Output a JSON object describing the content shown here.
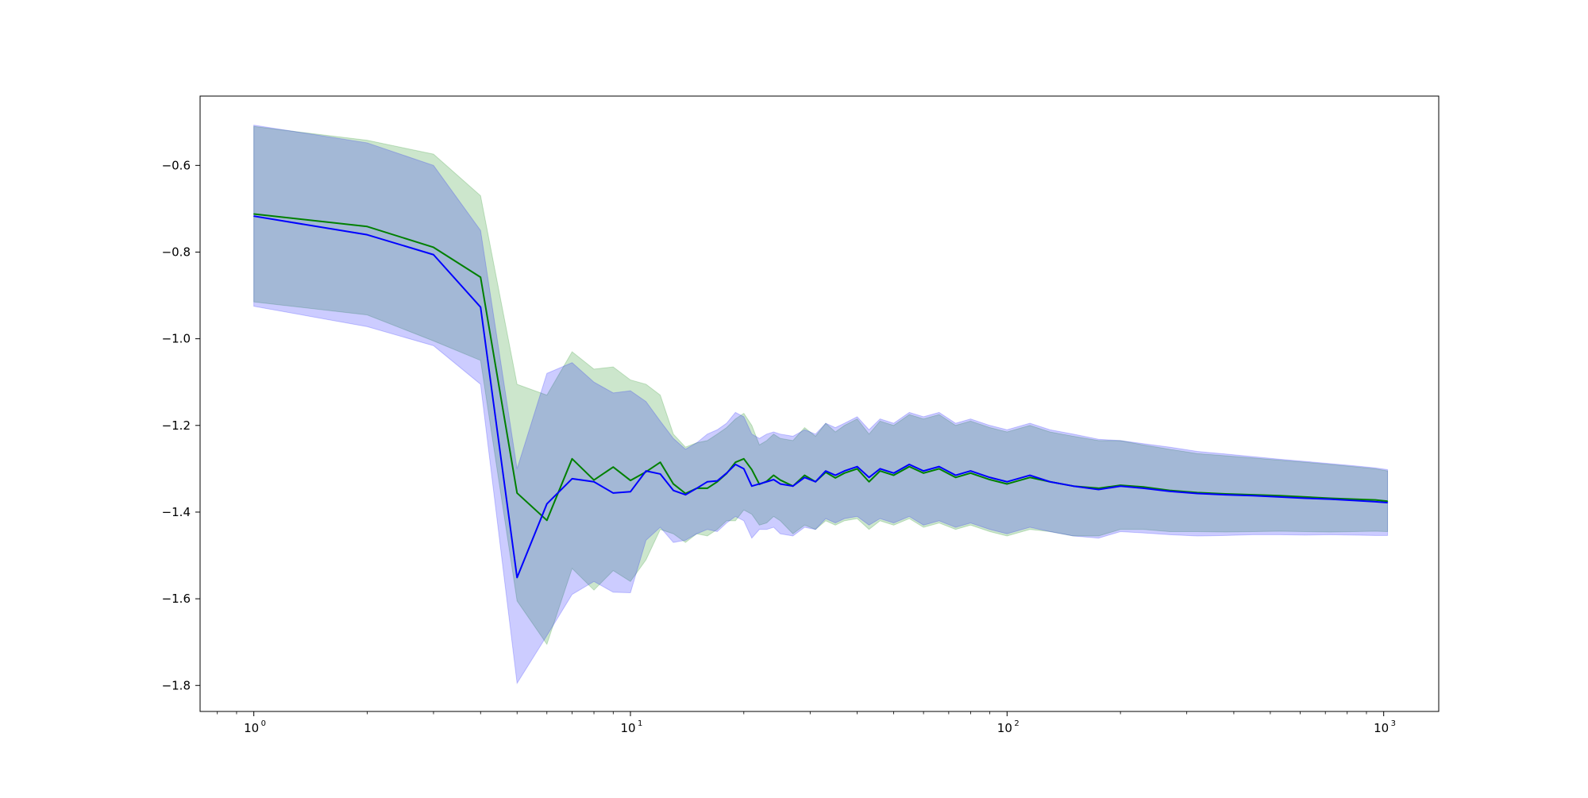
{
  "chart_data": {
    "type": "line",
    "title": "",
    "xlabel": "",
    "ylabel": "",
    "xscale": "log",
    "xlim": [
      0.72,
      1400
    ],
    "ylim": [
      -1.86,
      -0.44
    ],
    "grid": false,
    "legend": "none",
    "x_ticks": [
      {
        "base": "10",
        "exp": "0",
        "value": 1
      },
      {
        "base": "10",
        "exp": "1",
        "value": 10
      },
      {
        "base": "10",
        "exp": "2",
        "value": 100
      },
      {
        "base": "10",
        "exp": "3",
        "value": 1000
      }
    ],
    "y_ticks": [
      {
        "label": "−0.6",
        "value": -0.6
      },
      {
        "label": "−0.8",
        "value": -0.8
      },
      {
        "label": "−1.0",
        "value": -1.0
      },
      {
        "label": "−1.2",
        "value": -1.2
      },
      {
        "label": "−1.4",
        "value": -1.4
      },
      {
        "label": "−1.6",
        "value": -1.6
      },
      {
        "label": "−1.8",
        "value": -1.8
      }
    ],
    "series": [
      {
        "color": "#008000",
        "band_color": "#008000",
        "band_opacity": 0.2,
        "x": [
          1,
          2,
          3,
          4,
          5,
          6,
          7,
          8,
          9,
          10,
          11,
          12,
          13,
          14,
          15,
          16,
          17,
          18,
          19,
          20,
          21,
          22,
          23,
          24,
          25,
          27,
          29,
          31,
          33,
          35,
          37,
          40,
          43,
          46,
          50,
          55,
          60,
          66,
          73,
          80,
          90,
          100,
          115,
          130,
          150,
          175,
          200,
          230,
          270,
          320,
          380,
          450,
          530,
          620,
          720,
          830,
          950,
          1024
        ],
        "y": [
          -0.712,
          -0.741,
          -0.789,
          -0.858,
          -1.356,
          -1.419,
          -1.277,
          -1.326,
          -1.296,
          -1.327,
          -1.307,
          -1.285,
          -1.335,
          -1.357,
          -1.345,
          -1.345,
          -1.33,
          -1.311,
          -1.285,
          -1.277,
          -1.302,
          -1.336,
          -1.329,
          -1.315,
          -1.326,
          -1.34,
          -1.315,
          -1.33,
          -1.308,
          -1.321,
          -1.31,
          -1.3,
          -1.33,
          -1.305,
          -1.315,
          -1.295,
          -1.31,
          -1.3,
          -1.32,
          -1.31,
          -1.325,
          -1.335,
          -1.32,
          -1.33,
          -1.34,
          -1.345,
          -1.338,
          -1.342,
          -1.35,
          -1.355,
          -1.358,
          -1.36,
          -1.362,
          -1.365,
          -1.368,
          -1.37,
          -1.372,
          -1.375
        ],
        "upper": [
          -0.51,
          -0.542,
          -0.574,
          -0.67,
          -1.105,
          -1.13,
          -1.03,
          -1.07,
          -1.065,
          -1.095,
          -1.105,
          -1.13,
          -1.22,
          -1.25,
          -1.24,
          -1.235,
          -1.22,
          -1.205,
          -1.185,
          -1.172,
          -1.2,
          -1.245,
          -1.235,
          -1.22,
          -1.23,
          -1.235,
          -1.205,
          -1.225,
          -1.195,
          -1.215,
          -1.2,
          -1.185,
          -1.22,
          -1.19,
          -1.2,
          -1.175,
          -1.185,
          -1.175,
          -1.2,
          -1.19,
          -1.205,
          -1.215,
          -1.2,
          -1.215,
          -1.225,
          -1.235,
          -1.235,
          -1.245,
          -1.255,
          -1.265,
          -1.27,
          -1.275,
          -1.28,
          -1.285,
          -1.29,
          -1.295,
          -1.3,
          -1.305
        ],
        "lower": [
          -0.915,
          -0.945,
          -1.005,
          -1.05,
          -1.605,
          -1.705,
          -1.53,
          -1.58,
          -1.535,
          -1.56,
          -1.51,
          -1.44,
          -1.45,
          -1.47,
          -1.45,
          -1.455,
          -1.44,
          -1.42,
          -1.42,
          -1.395,
          -1.405,
          -1.43,
          -1.425,
          -1.41,
          -1.42,
          -1.45,
          -1.43,
          -1.44,
          -1.42,
          -1.43,
          -1.42,
          -1.415,
          -1.44,
          -1.42,
          -1.43,
          -1.415,
          -1.435,
          -1.425,
          -1.44,
          -1.43,
          -1.445,
          -1.455,
          -1.44,
          -1.445,
          -1.455,
          -1.455,
          -1.44,
          -1.44,
          -1.445,
          -1.445,
          -1.446,
          -1.445,
          -1.444,
          -1.445,
          -1.446,
          -1.445,
          -1.444,
          -1.445
        ]
      },
      {
        "color": "#0000ff",
        "band_color": "#0000ff",
        "band_opacity": 0.2,
        "x": [
          1,
          2,
          3,
          4,
          5,
          6,
          7,
          8,
          9,
          10,
          11,
          12,
          13,
          14,
          15,
          16,
          17,
          18,
          19,
          20,
          21,
          22,
          23,
          24,
          25,
          27,
          29,
          31,
          33,
          35,
          37,
          40,
          43,
          46,
          50,
          55,
          60,
          66,
          73,
          80,
          90,
          100,
          115,
          130,
          150,
          175,
          200,
          230,
          270,
          320,
          380,
          450,
          530,
          620,
          720,
          830,
          950,
          1024
        ],
        "y": [
          -0.717,
          -0.76,
          -0.806,
          -0.927,
          -1.551,
          -1.381,
          -1.323,
          -1.33,
          -1.356,
          -1.353,
          -1.305,
          -1.312,
          -1.35,
          -1.36,
          -1.345,
          -1.33,
          -1.328,
          -1.31,
          -1.29,
          -1.3,
          -1.34,
          -1.335,
          -1.33,
          -1.325,
          -1.335,
          -1.34,
          -1.32,
          -1.33,
          -1.305,
          -1.315,
          -1.305,
          -1.295,
          -1.32,
          -1.3,
          -1.31,
          -1.29,
          -1.305,
          -1.295,
          -1.315,
          -1.305,
          -1.32,
          -1.33,
          -1.315,
          -1.33,
          -1.34,
          -1.348,
          -1.34,
          -1.345,
          -1.352,
          -1.357,
          -1.36,
          -1.362,
          -1.365,
          -1.368,
          -1.37,
          -1.373,
          -1.376,
          -1.378
        ],
        "upper": [
          -0.507,
          -0.548,
          -0.6,
          -0.75,
          -1.3,
          -1.08,
          -1.055,
          -1.1,
          -1.125,
          -1.12,
          -1.145,
          -1.19,
          -1.23,
          -1.255,
          -1.24,
          -1.22,
          -1.21,
          -1.195,
          -1.17,
          -1.18,
          -1.22,
          -1.23,
          -1.22,
          -1.215,
          -1.22,
          -1.225,
          -1.21,
          -1.22,
          -1.195,
          -1.205,
          -1.195,
          -1.18,
          -1.21,
          -1.185,
          -1.195,
          -1.17,
          -1.18,
          -1.17,
          -1.195,
          -1.185,
          -1.2,
          -1.21,
          -1.195,
          -1.21,
          -1.22,
          -1.232,
          -1.235,
          -1.242,
          -1.25,
          -1.26,
          -1.266,
          -1.272,
          -1.278,
          -1.283,
          -1.288,
          -1.293,
          -1.298,
          -1.302
        ],
        "lower": [
          -0.925,
          -0.972,
          -1.016,
          -1.105,
          -1.795,
          -1.685,
          -1.59,
          -1.56,
          -1.585,
          -1.586,
          -1.465,
          -1.435,
          -1.47,
          -1.465,
          -1.45,
          -1.44,
          -1.445,
          -1.425,
          -1.41,
          -1.42,
          -1.46,
          -1.44,
          -1.44,
          -1.435,
          -1.45,
          -1.455,
          -1.435,
          -1.44,
          -1.415,
          -1.425,
          -1.415,
          -1.41,
          -1.43,
          -1.415,
          -1.425,
          -1.41,
          -1.43,
          -1.42,
          -1.435,
          -1.425,
          -1.44,
          -1.45,
          -1.435,
          -1.445,
          -1.455,
          -1.46,
          -1.445,
          -1.448,
          -1.452,
          -1.455,
          -1.454,
          -1.452,
          -1.452,
          -1.453,
          -1.452,
          -1.453,
          -1.454,
          -1.454
        ]
      }
    ]
  }
}
